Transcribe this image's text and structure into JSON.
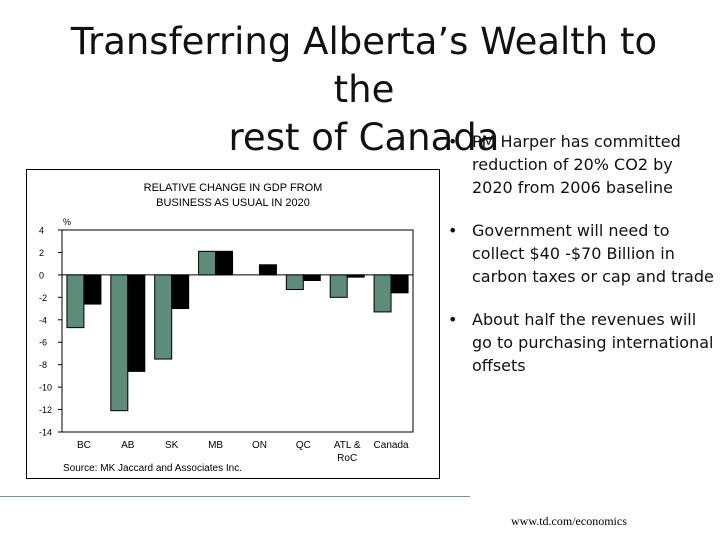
{
  "slide": {
    "title_line1": "Transferring Alberta’s Wealth to the",
    "title_line2": "rest of Canada",
    "bullets": [
      "PM Harper has committed reduction of 20% CO2 by 2020 from 2006 baseline",
      "Government will need to collect $40 -$70 Billion in carbon taxes or cap and trade",
      "About half the revenues will go to purchasing international offsets"
    ],
    "footer": "www.td.com/economics"
  },
  "chart_data": {
    "type": "bar",
    "title_line1": "RELATIVE CHANGE IN GDP FROM",
    "title_line2": "BUSINESS AS USUAL IN 2020",
    "ylabel": "%",
    "source": "Source: MK Jaccard and Associates Inc.",
    "categories": [
      "BC",
      "AB",
      "SK",
      "MB",
      "ON",
      "QC",
      "ATL & RoC",
      "Canada"
    ],
    "series": [
      {
        "name": "Series 1",
        "color": "#5e8c7b",
        "values": [
          -4.7,
          -12.1,
          -7.5,
          2.1,
          0,
          -1.3,
          -2.0,
          -3.3
        ]
      },
      {
        "name": "Series 2",
        "color": "#000000",
        "values": [
          -2.6,
          -8.6,
          -3.0,
          2.1,
          0.9,
          -0.5,
          -0.2,
          -1.6
        ]
      }
    ],
    "yticks": [
      4,
      2,
      0,
      -2,
      -4,
      -6,
      -8,
      -10,
      -12,
      -14
    ],
    "ylim": [
      -14,
      4
    ]
  }
}
